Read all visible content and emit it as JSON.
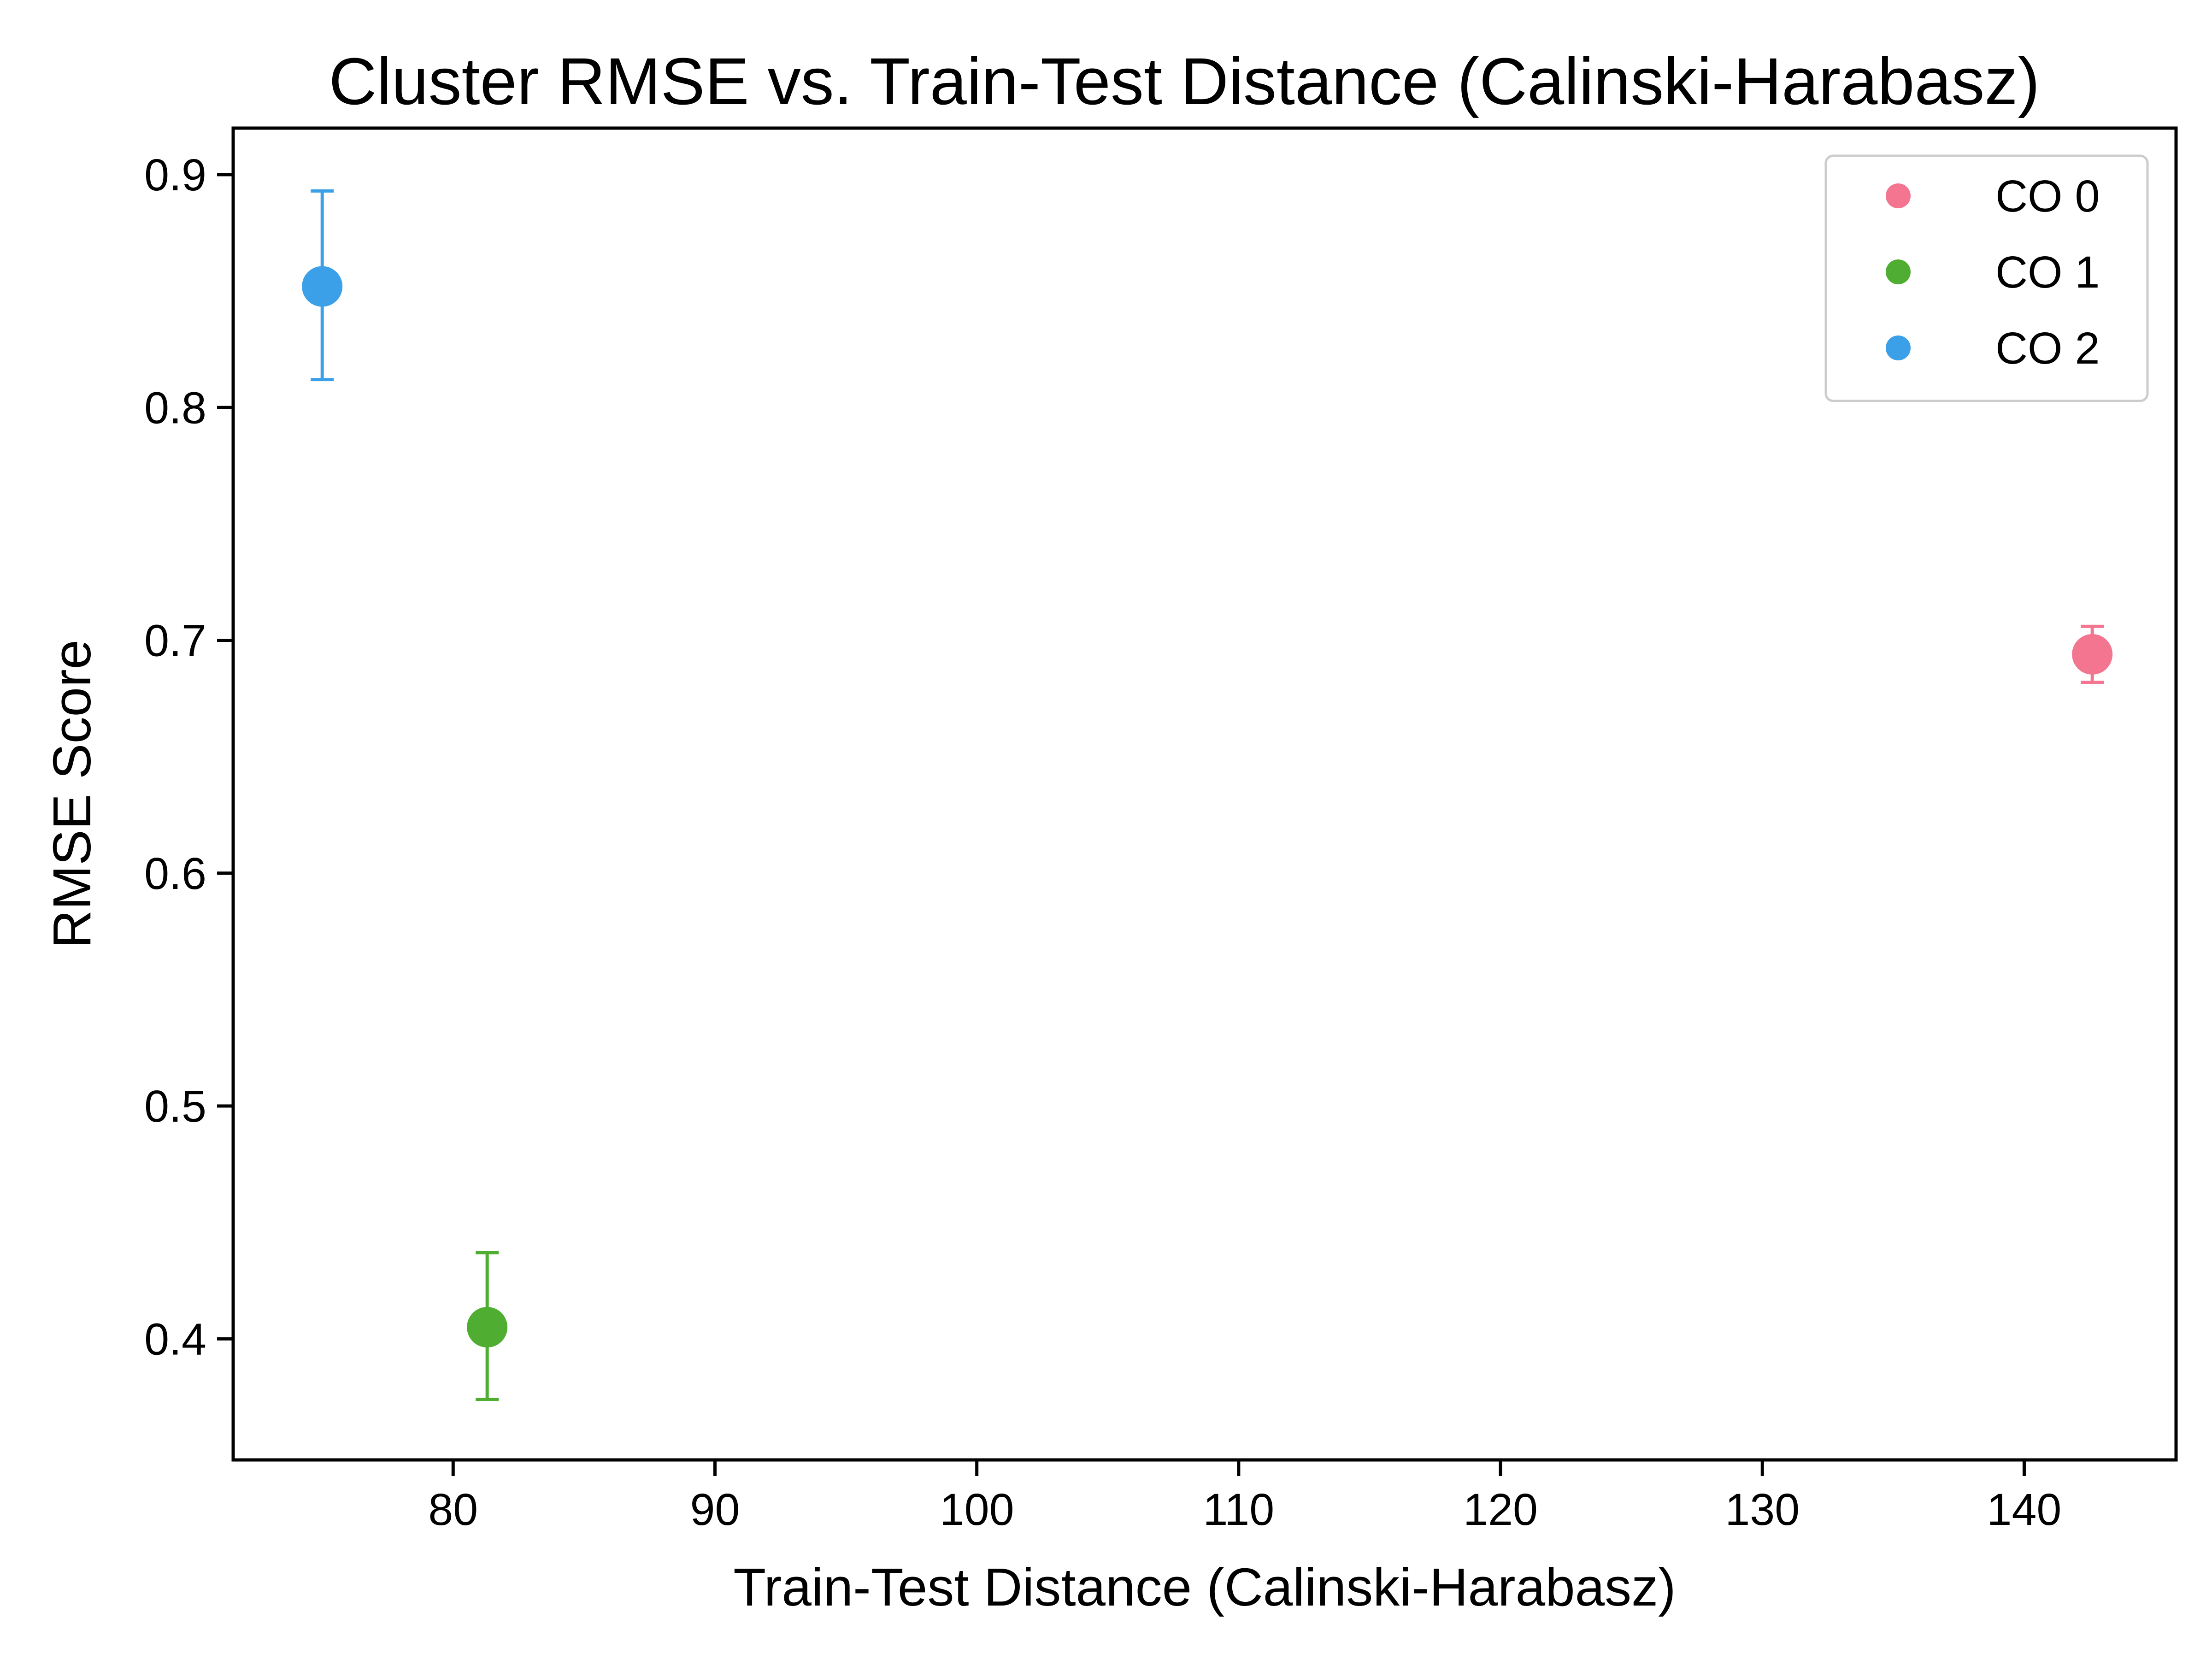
{
  "chart_data": {
    "type": "scatter",
    "title": "Cluster RMSE vs. Train-Test Distance (Calinski-Harabasz)",
    "xlabel": "Train-Test Distance (Calinski-Harabasz)",
    "ylabel": "RMSE Score",
    "xlim": [
      71.6,
      145.8
    ],
    "ylim": [
      0.348,
      0.92
    ],
    "xticks": [
      80,
      90,
      100,
      110,
      120,
      130,
      140
    ],
    "yticks": [
      0.4,
      0.5,
      0.6,
      0.7,
      0.8,
      0.9
    ],
    "xtick_labels": [
      "80",
      "90",
      "100",
      "110",
      "120",
      "130",
      "140"
    ],
    "ytick_labels": [
      "0.4",
      "0.5",
      "0.6",
      "0.7",
      "0.8",
      "0.9"
    ],
    "grid": false,
    "legend_position": "top-right",
    "series": [
      {
        "name": "CO 0",
        "color": "#f37590",
        "x": 142.6,
        "y": 0.694,
        "yerr_low": 0.682,
        "yerr_high": 0.706
      },
      {
        "name": "CO 1",
        "color": "#4fad32",
        "x": 81.3,
        "y": 0.405,
        "yerr_low": 0.374,
        "yerr_high": 0.437
      },
      {
        "name": "CO 2",
        "color": "#3ca0e9",
        "x": 75.0,
        "y": 0.852,
        "yerr_low": 0.812,
        "yerr_high": 0.893
      }
    ]
  }
}
